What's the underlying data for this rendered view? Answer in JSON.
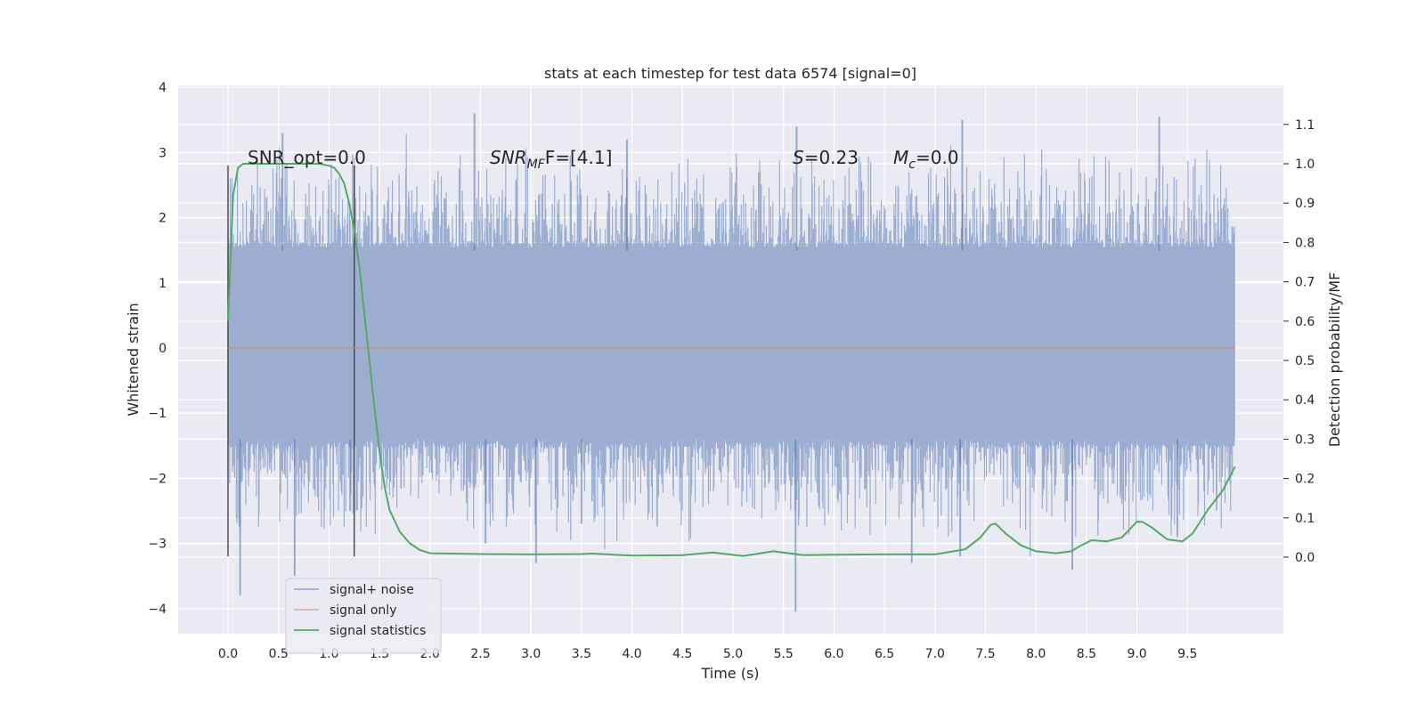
{
  "chart_data": {
    "type": "line",
    "title": "stats at each timestep for test data 6574 [signal=0]",
    "xlabel": "Time (s)",
    "ylabel": "Whitened strain",
    "y2label": "Detection probability/MF",
    "xlim": [
      -0.5,
      10.5
    ],
    "ylim": [
      -4.4,
      4.0
    ],
    "y2lim": [
      -0.2,
      1.2
    ],
    "xticks": [
      "0.0",
      "0.5",
      "1.0",
      "1.5",
      "2.0",
      "2.5",
      "3.0",
      "3.5",
      "4.0",
      "4.5",
      "5.0",
      "5.5",
      "6.0",
      "6.5",
      "7.0",
      "7.5",
      "8.0",
      "8.5",
      "9.0",
      "9.5"
    ],
    "yticks": [
      "4",
      "3",
      "2",
      "1",
      "0",
      "−1",
      "−2",
      "−3",
      "−4"
    ],
    "y2ticks": [
      "1.1",
      "1.0",
      "0.9",
      "0.8",
      "0.7",
      "0.6",
      "0.5",
      "0.4",
      "0.3",
      "0.2",
      "0.1",
      "0.0"
    ],
    "grid": true,
    "legend_position": "lower-left",
    "annotations": {
      "snr_opt": "SNR_opt=0.0",
      "snr_mf_main": "SNR",
      "snr_mf_sub": "MF",
      "snr_mf_rest": "F=[4.1]",
      "s_main": "S",
      "s_rest": "=0.23",
      "mc_main": "M",
      "mc_sub": "c",
      "mc_rest": "=0.0"
    },
    "vlines": [
      0.0,
      1.25
    ],
    "series": [
      {
        "name": "signal+ noise",
        "color": "#4c72b0",
        "alpha": 0.5,
        "description_range": [
          0.0,
          9.97
        ],
        "noise_band": [
          -1.4,
          1.6
        ],
        "x_extent": [
          0.0,
          9.97
        ]
      },
      {
        "name": "signal only",
        "color": "#dd8452",
        "x": [
          0.0,
          9.97
        ],
        "y": [
          0.0,
          0.0
        ]
      },
      {
        "name": "signal statistics",
        "color": "#55a868",
        "axis": "right",
        "x": [
          0.0,
          0.05,
          0.1,
          0.15,
          0.2,
          0.3,
          0.5,
          0.7,
          0.9,
          1.0,
          1.05,
          1.1,
          1.15,
          1.2,
          1.25,
          1.3,
          1.35,
          1.4,
          1.45,
          1.5,
          1.55,
          1.6,
          1.7,
          1.8,
          1.9,
          2.0,
          2.2,
          2.5,
          3.0,
          3.5,
          3.6,
          4.0,
          4.5,
          4.8,
          5.1,
          5.4,
          5.7,
          6.0,
          6.5,
          7.0,
          7.3,
          7.45,
          7.55,
          7.6,
          7.7,
          7.85,
          8.0,
          8.2,
          8.35,
          8.45,
          8.55,
          8.7,
          8.85,
          9.0,
          9.05,
          9.15,
          9.3,
          9.45,
          9.55,
          9.7,
          9.85,
          9.97
        ],
        "y": [
          0.6,
          0.92,
          0.99,
          1.0,
          1.0,
          1.0,
          1.0,
          1.0,
          1.0,
          0.995,
          0.99,
          0.975,
          0.95,
          0.9,
          0.83,
          0.74,
          0.62,
          0.5,
          0.38,
          0.27,
          0.18,
          0.12,
          0.065,
          0.035,
          0.018,
          0.01,
          0.009,
          0.008,
          0.007,
          0.008,
          0.009,
          0.004,
          0.005,
          0.012,
          0.003,
          0.015,
          0.005,
          0.006,
          0.007,
          0.007,
          0.02,
          0.05,
          0.082,
          0.085,
          0.06,
          0.03,
          0.015,
          0.01,
          0.015,
          0.03,
          0.043,
          0.04,
          0.05,
          0.09,
          0.09,
          0.075,
          0.045,
          0.04,
          0.06,
          0.12,
          0.17,
          0.23
        ]
      }
    ],
    "spikes": [
      {
        "x": 0.12,
        "y": -3.8
      },
      {
        "x": 0.54,
        "y": 3.3
      },
      {
        "x": 0.66,
        "y": -3.5
      },
      {
        "x": 1.25,
        "y": 2.8
      },
      {
        "x": 1.21,
        "y": -2.5
      },
      {
        "x": 2.44,
        "y": 3.6
      },
      {
        "x": 2.55,
        "y": -3.0
      },
      {
        "x": 3.05,
        "y": -3.3
      },
      {
        "x": 3.95,
        "y": 3.2
      },
      {
        "x": 3.5,
        "y": -2.7
      },
      {
        "x": 5.63,
        "y": 3.4
      },
      {
        "x": 5.62,
        "y": -4.05
      },
      {
        "x": 6.77,
        "y": -3.3
      },
      {
        "x": 7.27,
        "y": 3.5
      },
      {
        "x": 7.25,
        "y": -3.2
      },
      {
        "x": 8.36,
        "y": -3.4
      },
      {
        "x": 9.22,
        "y": 3.55
      },
      {
        "x": 9.4,
        "y": -2.9
      }
    ]
  }
}
